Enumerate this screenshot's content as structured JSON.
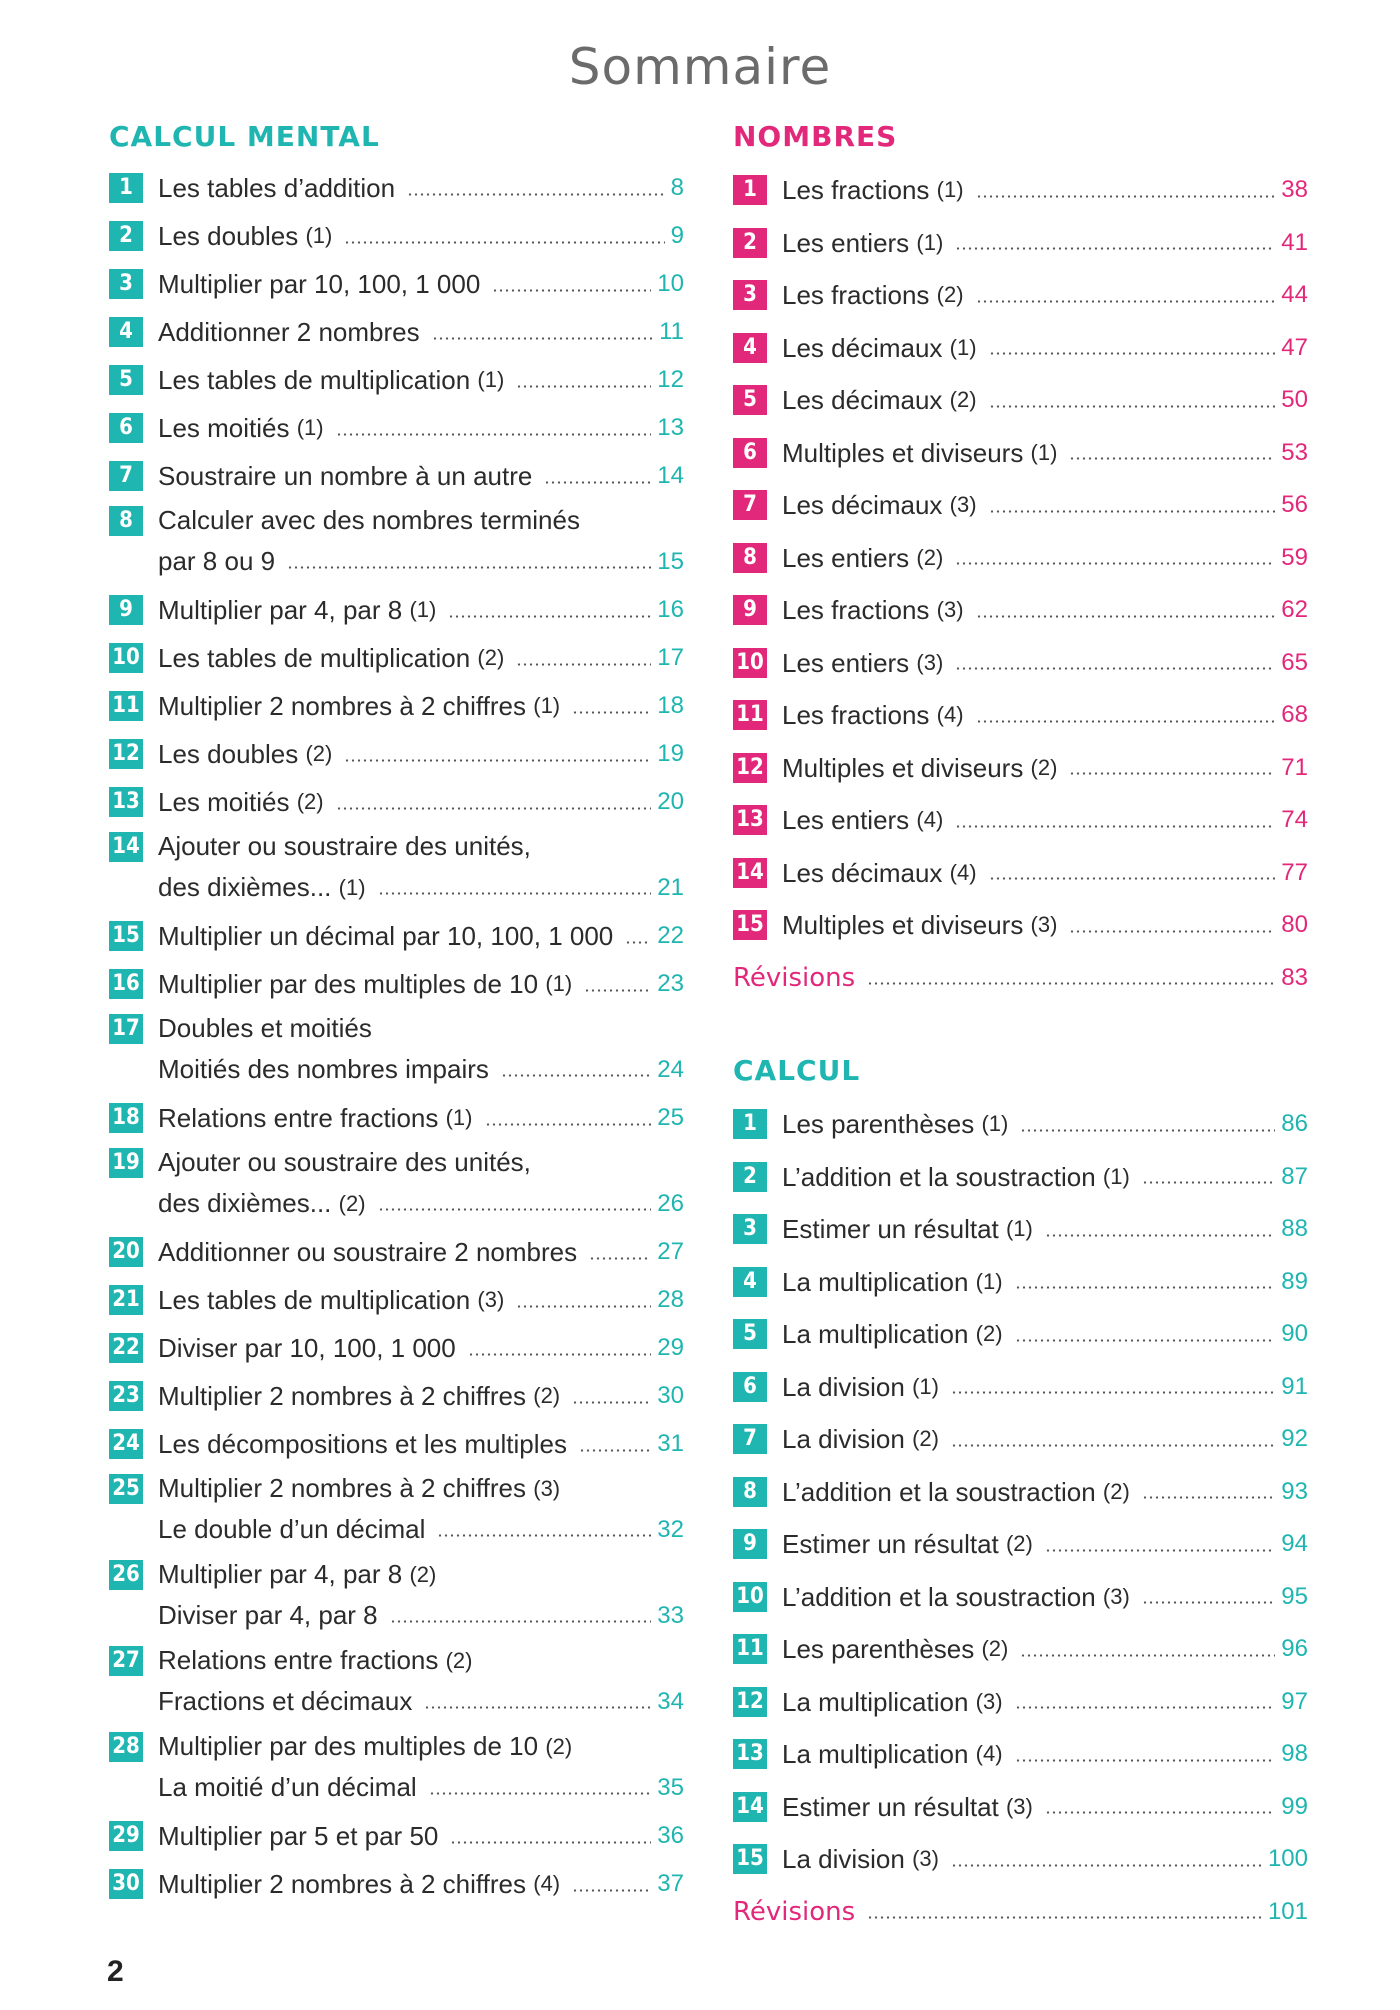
{
  "title": "Sommaire",
  "calcul_mental": {
    "heading": "CALCUL MENTAL",
    "items": [
      {
        "n": "1",
        "lines": [
          {
            "text": "Les tables d’addition",
            "paren": "",
            "page": "8"
          }
        ]
      },
      {
        "n": "2",
        "lines": [
          {
            "text": "Les doubles",
            "paren": "(1)",
            "page": "9"
          }
        ]
      },
      {
        "n": "3",
        "lines": [
          {
            "text": "Multiplier par 10, 100, 1 000",
            "paren": "",
            "page": "10"
          }
        ]
      },
      {
        "n": "4",
        "lines": [
          {
            "text": "Additionner 2 nombres",
            "paren": "",
            "page": "11"
          }
        ]
      },
      {
        "n": "5",
        "lines": [
          {
            "text": "Les tables de multiplication",
            "paren": "(1)",
            "page": "12"
          }
        ]
      },
      {
        "n": "6",
        "lines": [
          {
            "text": "Les moitiés",
            "paren": "(1)",
            "page": "13"
          }
        ]
      },
      {
        "n": "7",
        "lines": [
          {
            "text": "Soustraire un nombre à un autre",
            "paren": "",
            "page": "14"
          }
        ]
      },
      {
        "n": "8",
        "lines": [
          {
            "text": "Calculer avec des nombres terminés",
            "paren": "",
            "page": ""
          },
          {
            "text": "par 8 ou 9",
            "paren": "",
            "page": "15"
          }
        ]
      },
      {
        "n": "9",
        "lines": [
          {
            "text": "Multiplier par 4, par 8",
            "paren": "(1)",
            "page": "16"
          }
        ]
      },
      {
        "n": "10",
        "lines": [
          {
            "text": "Les tables de multiplication",
            "paren": "(2)",
            "page": "17"
          }
        ]
      },
      {
        "n": "11",
        "lines": [
          {
            "text": "Multiplier 2 nombres à 2 chiffres",
            "paren": "(1)",
            "page": "18"
          }
        ]
      },
      {
        "n": "12",
        "lines": [
          {
            "text": "Les doubles",
            "paren": "(2)",
            "page": "19"
          }
        ]
      },
      {
        "n": "13",
        "lines": [
          {
            "text": "Les moitiés",
            "paren": "(2)",
            "page": "20"
          }
        ]
      },
      {
        "n": "14",
        "lines": [
          {
            "text": "Ajouter ou soustraire des unités,",
            "paren": "",
            "page": ""
          },
          {
            "text": "des dixièmes...",
            "paren": "(1)",
            "page": "21"
          }
        ]
      },
      {
        "n": "15",
        "lines": [
          {
            "text": "Multiplier un décimal par 10, 100, 1 000",
            "paren": "",
            "page": "22"
          }
        ]
      },
      {
        "n": "16",
        "lines": [
          {
            "text": "Multiplier par des multiples de 10",
            "paren": "(1)",
            "page": "23"
          }
        ]
      },
      {
        "n": "17",
        "lines": [
          {
            "text": "Doubles et moitiés",
            "paren": "",
            "page": ""
          },
          {
            "text": "Moitiés des nombres impairs",
            "paren": "",
            "page": "24"
          }
        ]
      },
      {
        "n": "18",
        "lines": [
          {
            "text": "Relations entre fractions",
            "paren": "(1)",
            "page": "25"
          }
        ]
      },
      {
        "n": "19",
        "lines": [
          {
            "text": "Ajouter ou soustraire des unités,",
            "paren": "",
            "page": ""
          },
          {
            "text": "des dixièmes...",
            "paren": "(2)",
            "page": "26"
          }
        ]
      },
      {
        "n": "20",
        "lines": [
          {
            "text": "Additionner ou soustraire 2 nombres",
            "paren": "",
            "page": "27"
          }
        ]
      },
      {
        "n": "21",
        "lines": [
          {
            "text": "Les tables de multiplication",
            "paren": "(3)",
            "page": "28"
          }
        ]
      },
      {
        "n": "22",
        "lines": [
          {
            "text": "Diviser par 10, 100, 1 000",
            "paren": "",
            "page": "29"
          }
        ]
      },
      {
        "n": "23",
        "lines": [
          {
            "text": "Multiplier 2 nombres à 2 chiffres",
            "paren": "(2)",
            "page": "30"
          }
        ]
      },
      {
        "n": "24",
        "lines": [
          {
            "text": "Les décompositions et les multiples",
            "paren": "",
            "page": "31"
          }
        ]
      },
      {
        "n": "25",
        "lines": [
          {
            "text": "Multiplier 2 nombres à 2 chiffres",
            "paren": "(3)",
            "page": ""
          },
          {
            "text": "Le double d’un décimal",
            "paren": "",
            "page": "32"
          }
        ]
      },
      {
        "n": "26",
        "lines": [
          {
            "text": "Multiplier par 4, par 8",
            "paren": "(2)",
            "page": ""
          },
          {
            "text": "Diviser par 4, par 8",
            "paren": "",
            "page": "33"
          }
        ]
      },
      {
        "n": "27",
        "lines": [
          {
            "text": "Relations entre fractions",
            "paren": "(2)",
            "page": ""
          },
          {
            "text": "Fractions et décimaux",
            "paren": "",
            "page": "34"
          }
        ]
      },
      {
        "n": "28",
        "lines": [
          {
            "text": "Multiplier par des multiples de 10",
            "paren": "(2)",
            "page": ""
          },
          {
            "text": "La moitié d’un décimal",
            "paren": "",
            "page": "35"
          }
        ]
      },
      {
        "n": "29",
        "lines": [
          {
            "text": "Multiplier par 5 et par 50",
            "paren": "",
            "page": "36"
          }
        ]
      },
      {
        "n": "30",
        "lines": [
          {
            "text": "Multiplier 2 nombres à 2 chiffres",
            "paren": "(4)",
            "page": "37"
          }
        ]
      }
    ]
  },
  "nombres": {
    "heading": "NOMBRES",
    "items": [
      {
        "n": "1",
        "text": "Les fractions",
        "paren": "(1)",
        "page": "38"
      },
      {
        "n": "2",
        "text": "Les entiers",
        "paren": "(1)",
        "page": "41"
      },
      {
        "n": "3",
        "text": "Les fractions",
        "paren": "(2)",
        "page": "44"
      },
      {
        "n": "4",
        "text": "Les décimaux",
        "paren": "(1)",
        "page": "47"
      },
      {
        "n": "5",
        "text": "Les décimaux",
        "paren": "(2)",
        "page": "50"
      },
      {
        "n": "6",
        "text": "Multiples et diviseurs",
        "paren": "(1)",
        "page": "53"
      },
      {
        "n": "7",
        "text": "Les décimaux",
        "paren": "(3)",
        "page": "56"
      },
      {
        "n": "8",
        "text": "Les entiers",
        "paren": "(2)",
        "page": "59"
      },
      {
        "n": "9",
        "text": "Les fractions",
        "paren": "(3)",
        "page": "62"
      },
      {
        "n": "10",
        "text": "Les entiers",
        "paren": "(3)",
        "page": "65"
      },
      {
        "n": "11",
        "text": "Les fractions",
        "paren": "(4)",
        "page": "68"
      },
      {
        "n": "12",
        "text": "Multiples et diviseurs",
        "paren": "(2)",
        "page": "71"
      },
      {
        "n": "13",
        "text": "Les entiers",
        "paren": "(4)",
        "page": "74"
      },
      {
        "n": "14",
        "text": "Les décimaux",
        "paren": "(4)",
        "page": "77"
      },
      {
        "n": "15",
        "text": "Multiples et diviseurs",
        "paren": "(3)",
        "page": "80"
      }
    ],
    "revisions": {
      "label": "Révisions",
      "page": "83"
    }
  },
  "calcul": {
    "heading": "CALCUL",
    "items": [
      {
        "n": "1",
        "text": "Les parenthèses",
        "paren": "(1)",
        "page": "86"
      },
      {
        "n": "2",
        "text": "L’addition et la soustraction",
        "paren": "(1)",
        "page": "87"
      },
      {
        "n": "3",
        "text": "Estimer un résultat",
        "paren": "(1)",
        "page": "88"
      },
      {
        "n": "4",
        "text": "La multiplication",
        "paren": "(1)",
        "page": "89"
      },
      {
        "n": "5",
        "text": "La multiplication",
        "paren": "(2)",
        "page": "90"
      },
      {
        "n": "6",
        "text": "La division",
        "paren": "(1)",
        "page": "91"
      },
      {
        "n": "7",
        "text": "La division",
        "paren": "(2)",
        "page": "92"
      },
      {
        "n": "8",
        "text": "L’addition et la soustraction",
        "paren": "(2)",
        "page": "93"
      },
      {
        "n": "9",
        "text": "Estimer un résultat",
        "paren": "(2)",
        "page": "94"
      },
      {
        "n": "10",
        "text": "L’addition et la soustraction",
        "paren": "(3)",
        "page": "95"
      },
      {
        "n": "11",
        "text": "Les parenthèses",
        "paren": "(2)",
        "page": "96"
      },
      {
        "n": "12",
        "text": "La multiplication",
        "paren": "(3)",
        "page": "97"
      },
      {
        "n": "13",
        "text": "La multiplication",
        "paren": "(4)",
        "page": "98"
      },
      {
        "n": "14",
        "text": "Estimer un résultat",
        "paren": "(3)",
        "page": "99"
      },
      {
        "n": "15",
        "text": "La division",
        "paren": "(3)",
        "page": "100"
      }
    ],
    "revisions": {
      "label": "Révisions",
      "page": "101"
    }
  },
  "page_number": "2",
  "colors": {
    "teal": "#1fb5b0",
    "pink": "#e2287a"
  }
}
